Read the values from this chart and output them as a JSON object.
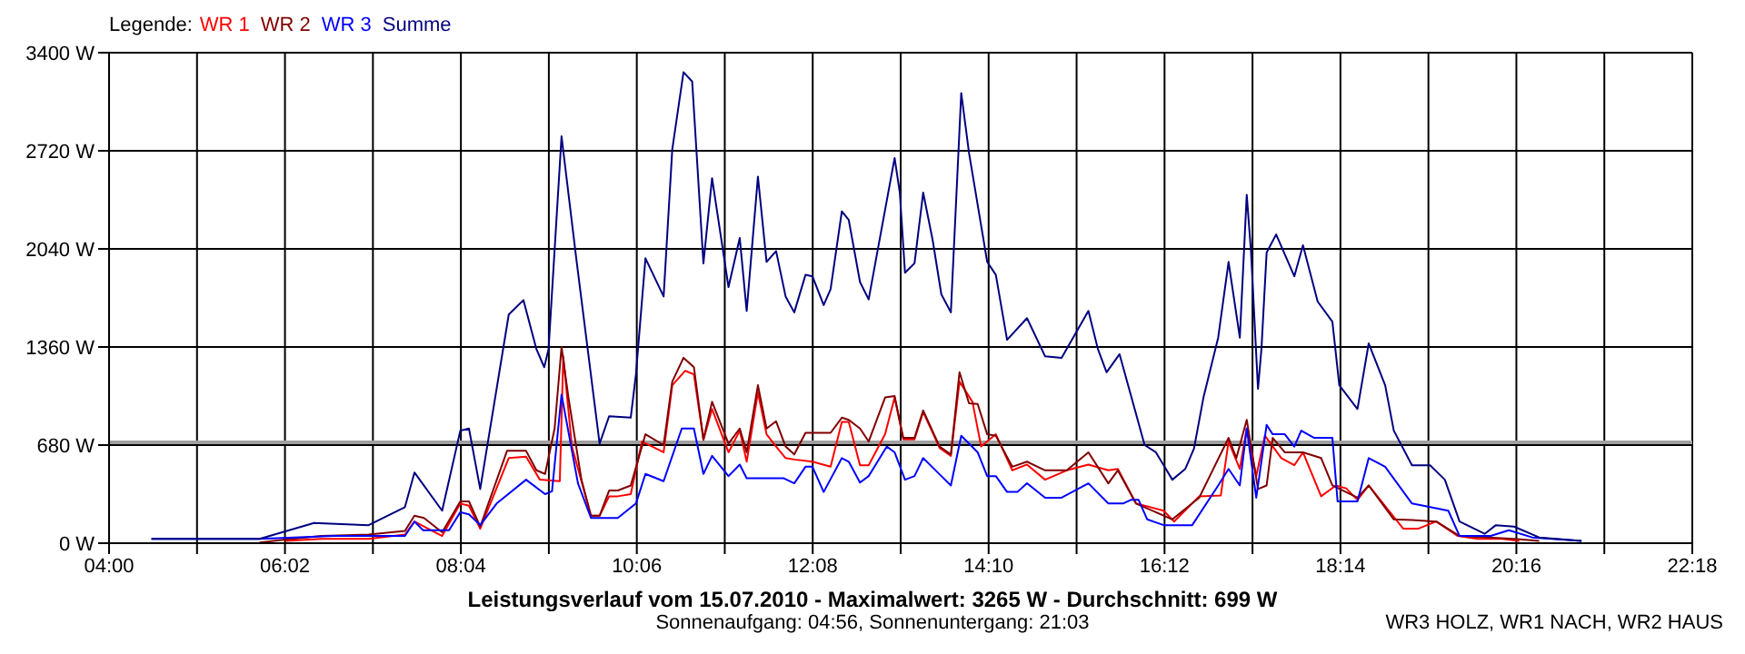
{
  "chart_data": {
    "type": "line",
    "title": "Leistungsverlauf vom 15.07.2010 - Maximalwert: 3265 W - Durchschnitt: 699 W",
    "subtitle": "Sonnenaufgang: 04:56, Sonnenuntergang: 21:03",
    "legend_title": "Legende:",
    "legend": "top left",
    "grid": true,
    "annotations": [
      "WR3 HOLZ, WR1 NACH, WR2 HAUS"
    ],
    "xlim": [
      4,
      22.3
    ],
    "ylim": [
      0,
      3400
    ],
    "xticks": [
      {
        "value": 4,
        "label": "04:00"
      },
      {
        "value": 5.0167,
        "label": null
      },
      {
        "value": 6.0333,
        "label": "06:02"
      },
      {
        "value": 7.05,
        "label": null
      },
      {
        "value": 8.0667,
        "label": "08:04"
      },
      {
        "value": 9.0833,
        "label": null
      },
      {
        "value": 10.1,
        "label": "10:06"
      },
      {
        "value": 11.1167,
        "label": null
      },
      {
        "value": 12.1333,
        "label": "12:08"
      },
      {
        "value": 13.15,
        "label": null
      },
      {
        "value": 14.1667,
        "label": "14:10"
      },
      {
        "value": 15.1833,
        "label": null
      },
      {
        "value": 16.2,
        "label": "16:12"
      },
      {
        "value": 17.2167,
        "label": null
      },
      {
        "value": 18.2333,
        "label": "18:14"
      },
      {
        "value": 19.25,
        "label": null
      },
      {
        "value": 20.2667,
        "label": "20:16"
      },
      {
        "value": 21.2833,
        "label": null
      },
      {
        "value": 22.3,
        "label": "22:18"
      }
    ],
    "yticks": [
      {
        "value": 0,
        "label": "0 W"
      },
      {
        "value": 680,
        "label": "680 W"
      },
      {
        "value": 1360,
        "label": "1360 W"
      },
      {
        "value": 2040,
        "label": "2040 W"
      },
      {
        "value": 2720,
        "label": "2720 W"
      },
      {
        "value": 3400,
        "label": "3400 W"
      }
    ],
    "ref_lines": [
      {
        "axis": "y",
        "value": 699,
        "color": "#a0a0a0"
      }
    ],
    "series": [
      {
        "name": "WR 1",
        "color": "#ff0000",
        "x": [
          6.04,
          6.46,
          7.0,
          7.42,
          7.53,
          7.85,
          8.06,
          8.16,
          8.29,
          8.62,
          8.82,
          8.98,
          9.21,
          9.25,
          9.35,
          9.57,
          9.67,
          9.78,
          9.88,
          10.03,
          10.16,
          10.41,
          10.51,
          10.66,
          10.76,
          10.87,
          10.97,
          11.16,
          11.29,
          11.37,
          11.5,
          11.6,
          11.71,
          11.82,
          11.92,
          12.13,
          12.34,
          12.47,
          12.55,
          12.68,
          12.78,
          12.97,
          13.08,
          13.18,
          13.31,
          13.41,
          13.6,
          13.73,
          13.83,
          13.98,
          14.08,
          14.25,
          14.44,
          14.61,
          14.82,
          15.07,
          15.32,
          15.55,
          15.66,
          15.87,
          16.19,
          16.31,
          16.6,
          16.85,
          16.94,
          17.07,
          17.15,
          17.26,
          17.36,
          17.55,
          17.7,
          17.8,
          18.01,
          18.18,
          18.3,
          18.43,
          18.56,
          18.96,
          19.13,
          19.34,
          19.59,
          19.82,
          20.1,
          20.3
        ],
        "values": [
          15,
          30,
          30,
          60,
          150,
          50,
          275,
          260,
          100,
          590,
          600,
          440,
          430,
          1295,
          670,
          190,
          190,
          325,
          325,
          340,
          705,
          630,
          1095,
          1195,
          1170,
          715,
          930,
          630,
          780,
          565,
          1045,
          755,
          670,
          590,
          580,
          565,
          530,
          840,
          840,
          540,
          540,
          755,
          1010,
          720,
          720,
          910,
          660,
          605,
          1120,
          980,
          670,
          755,
          505,
          545,
          440,
          505,
          545,
          505,
          515,
          275,
          225,
          150,
          325,
          330,
          705,
          515,
          795,
          465,
          745,
          590,
          540,
          630,
          325,
          400,
          380,
          300,
          400,
          100,
          100,
          150,
          50,
          30,
          30,
          15
        ]
      },
      {
        "name": "WR 2",
        "color": "#800000",
        "x": [
          5.74,
          6.04,
          6.46,
          7.0,
          7.42,
          7.53,
          7.64,
          7.85,
          8.06,
          8.16,
          8.29,
          8.6,
          8.82,
          8.94,
          9.04,
          9.15,
          9.23,
          9.31,
          9.46,
          9.57,
          9.67,
          9.78,
          9.88,
          10.03,
          10.2,
          10.41,
          10.51,
          10.64,
          10.76,
          10.87,
          10.97,
          11.16,
          11.29,
          11.37,
          11.5,
          11.6,
          11.71,
          11.82,
          11.92,
          12.05,
          12.34,
          12.47,
          12.55,
          12.68,
          12.78,
          12.97,
          13.08,
          13.18,
          13.31,
          13.41,
          13.6,
          13.73,
          13.83,
          13.94,
          14.04,
          14.15,
          14.25,
          14.44,
          14.61,
          14.82,
          15.07,
          15.32,
          15.55,
          15.66,
          15.87,
          16.29,
          16.6,
          16.94,
          17.03,
          17.15,
          17.28,
          17.38,
          17.45,
          17.59,
          17.8,
          18.01,
          18.14,
          18.43,
          18.56,
          18.85,
          19.06,
          19.34,
          19.61,
          20.24,
          20.53
        ],
        "values": [
          5,
          25,
          50,
          60,
          85,
          190,
          175,
          75,
          290,
          290,
          115,
          640,
          640,
          505,
          480,
          795,
          1360,
          1010,
          440,
          190,
          190,
          365,
          365,
          400,
          755,
          680,
          1120,
          1285,
          1220,
          720,
          980,
          690,
          795,
          630,
          1095,
          795,
          845,
          670,
          615,
          765,
          765,
          870,
          855,
          795,
          705,
          1010,
          1020,
          730,
          730,
          920,
          670,
          615,
          1185,
          970,
          965,
          755,
          745,
          530,
          565,
          505,
          505,
          630,
          415,
          505,
          275,
          165,
          315,
          730,
          590,
          855,
          375,
          400,
          730,
          630,
          630,
          590,
          400,
          315,
          400,
          165,
          160,
          150,
          50,
          30,
          15
        ]
      },
      {
        "name": "WR 3",
        "color": "#0000ff",
        "x": [
          4.49,
          5.74,
          6.6,
          7.42,
          7.53,
          7.63,
          7.93,
          8.06,
          8.16,
          8.29,
          8.48,
          8.82,
          9.04,
          9.12,
          9.23,
          9.42,
          9.57,
          9.88,
          10.09,
          10.2,
          10.41,
          10.62,
          10.76,
          10.87,
          10.97,
          11.16,
          11.29,
          11.37,
          11.8,
          11.92,
          12.05,
          12.13,
          12.26,
          12.47,
          12.55,
          12.68,
          12.78,
          12.99,
          13.08,
          13.2,
          13.31,
          13.41,
          13.62,
          13.73,
          13.85,
          14.04,
          14.15,
          14.25,
          14.38,
          14.5,
          14.61,
          14.82,
          15.01,
          15.32,
          15.55,
          15.72,
          15.81,
          15.9,
          16.0,
          16.19,
          16.52,
          16.82,
          16.94,
          17.07,
          17.15,
          17.26,
          17.38,
          17.45,
          17.59,
          17.7,
          17.78,
          17.93,
          18.14,
          18.2,
          18.43,
          18.56,
          18.75,
          19.06,
          19.48,
          19.61,
          19.97,
          20.18,
          20.45,
          21.02
        ],
        "values": [
          30,
          30,
          50,
          50,
          150,
          90,
          90,
          215,
          200,
          125,
          275,
          440,
          340,
          360,
          1030,
          415,
          175,
          175,
          275,
          480,
          430,
          795,
          795,
          480,
          605,
          465,
          545,
          450,
          450,
          415,
          530,
          530,
          355,
          590,
          565,
          420,
          465,
          670,
          630,
          440,
          465,
          590,
          465,
          400,
          745,
          630,
          465,
          465,
          355,
          355,
          415,
          315,
          315,
          415,
          275,
          275,
          300,
          300,
          165,
          125,
          125,
          400,
          515,
          400,
          795,
          315,
          820,
          755,
          755,
          670,
          780,
          730,
          730,
          290,
          290,
          590,
          530,
          275,
          225,
          50,
          50,
          90,
          40,
          15
        ]
      },
      {
        "name": "Summe",
        "color": "#000080",
        "x": [
          4.49,
          5.74,
          6.37,
          7.0,
          7.42,
          7.53,
          7.85,
          8.06,
          8.16,
          8.29,
          8.62,
          8.79,
          8.94,
          9.03,
          9.08,
          9.23,
          9.4,
          9.67,
          9.78,
          10.03,
          10.09,
          10.2,
          10.41,
          10.51,
          10.64,
          10.74,
          10.87,
          10.97,
          11.16,
          11.29,
          11.37,
          11.5,
          11.6,
          11.71,
          11.82,
          11.92,
          12.05,
          12.13,
          12.26,
          12.34,
          12.47,
          12.55,
          12.68,
          12.78,
          12.89,
          13.08,
          13.14,
          13.2,
          13.31,
          13.41,
          13.52,
          13.62,
          13.73,
          13.85,
          13.94,
          14.15,
          14.25,
          14.38,
          14.61,
          14.82,
          15.01,
          15.32,
          15.43,
          15.53,
          15.68,
          15.97,
          16.1,
          16.29,
          16.44,
          16.54,
          16.65,
          16.82,
          16.94,
          17.07,
          17.15,
          17.2,
          17.28,
          17.32,
          17.38,
          17.49,
          17.7,
          17.8,
          17.97,
          18.14,
          18.22,
          18.43,
          18.56,
          18.75,
          18.85,
          19.06,
          19.27,
          19.44,
          19.61,
          19.9,
          20.03,
          20.24,
          20.53,
          21.02
        ],
        "values": [
          30,
          30,
          140,
          125,
          250,
          490,
          225,
          780,
          795,
          375,
          1585,
          1685,
          1345,
          1220,
          1345,
          2820,
          1975,
          690,
          880,
          870,
          1170,
          1975,
          1710,
          2730,
          3265,
          3200,
          1940,
          2530,
          1775,
          2115,
          1610,
          2540,
          1950,
          2025,
          1710,
          1600,
          1860,
          1850,
          1650,
          1760,
          2300,
          2240,
          1810,
          1690,
          2050,
          2670,
          2430,
          1875,
          1940,
          2430,
          2100,
          1725,
          1600,
          3120,
          2705,
          1950,
          1860,
          1410,
          1560,
          1295,
          1285,
          1610,
          1345,
          1185,
          1310,
          680,
          630,
          440,
          515,
          655,
          1010,
          1425,
          1950,
          1425,
          2415,
          2015,
          1070,
          1345,
          2015,
          2140,
          1850,
          2065,
          1675,
          1535,
          1095,
          930,
          1385,
          1095,
          780,
          540,
          540,
          440,
          150,
          65,
          125,
          115,
          40,
          15
        ]
      }
    ]
  }
}
